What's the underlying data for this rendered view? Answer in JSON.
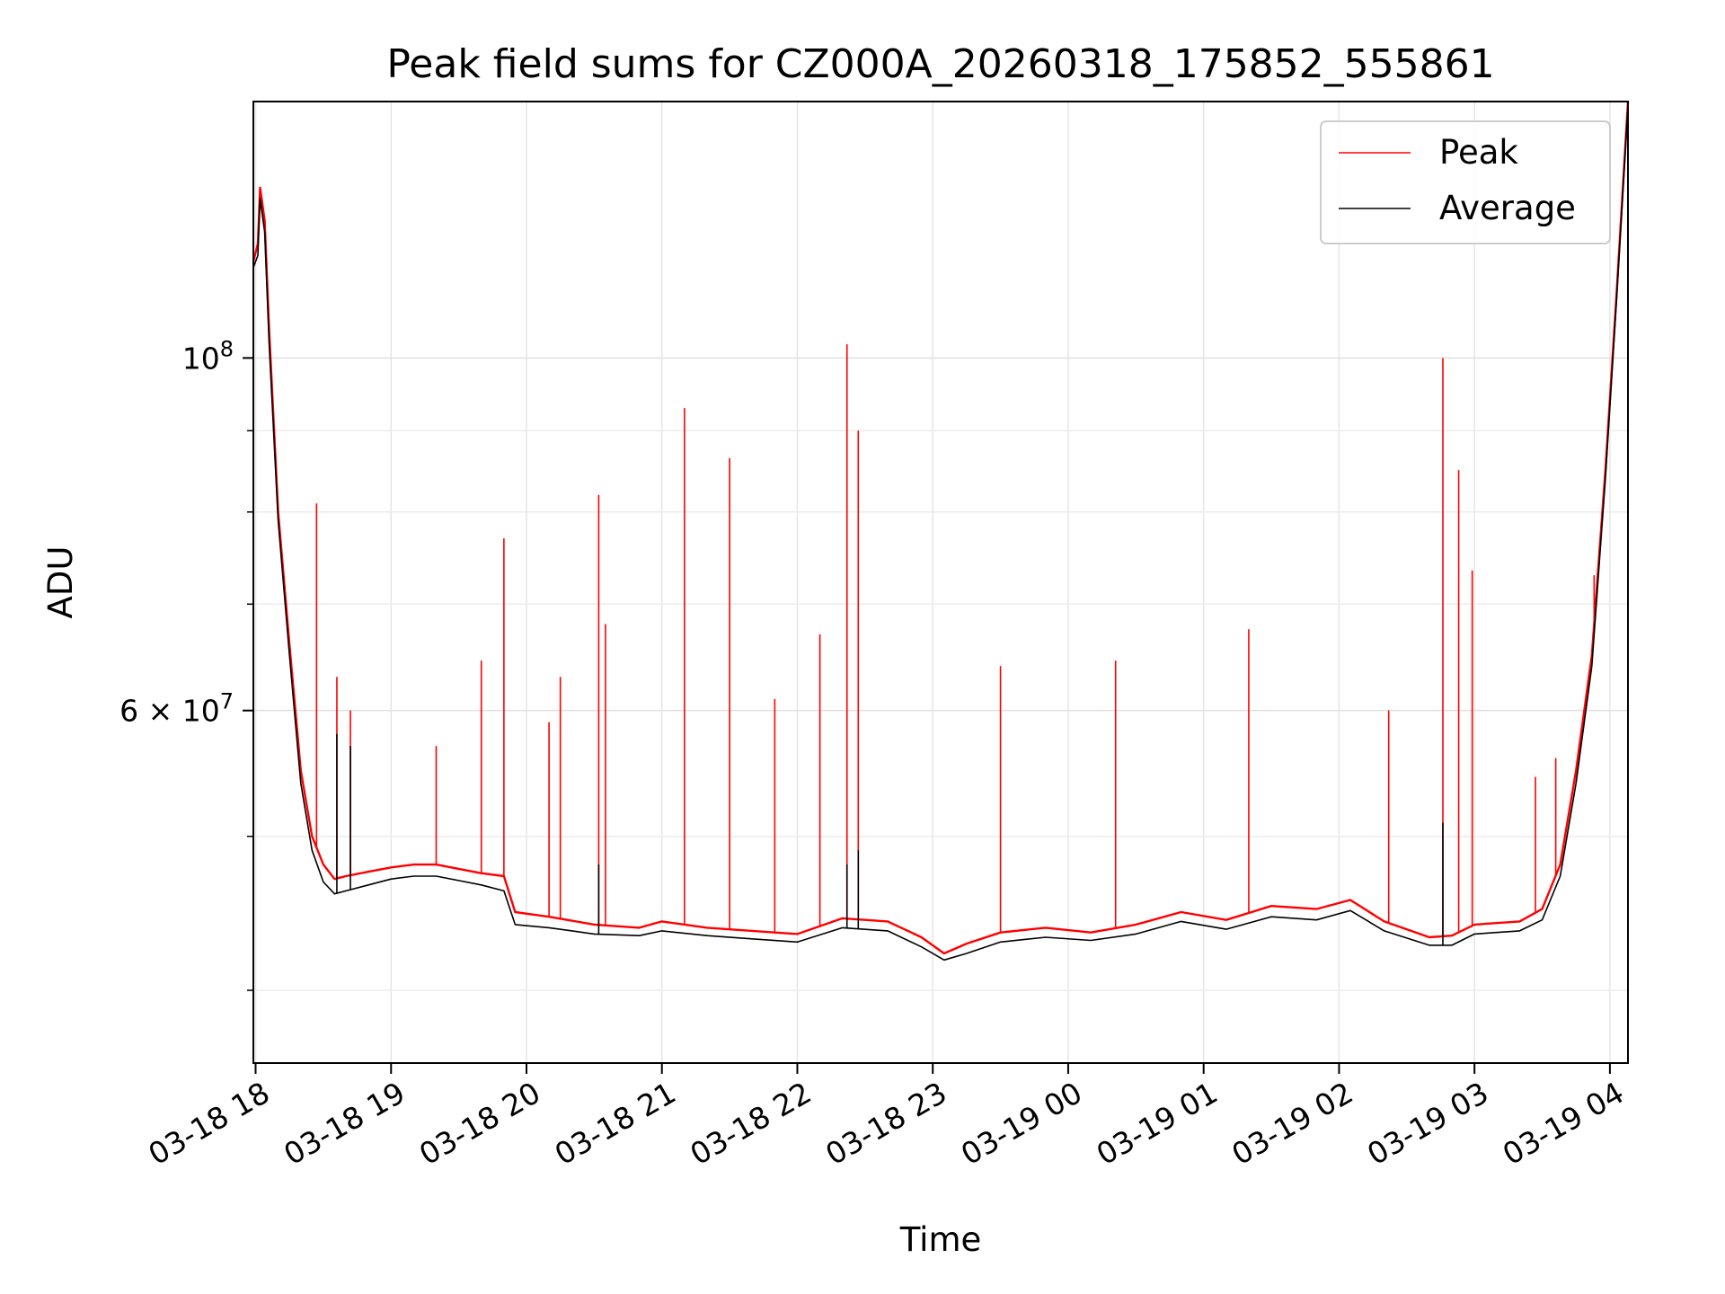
{
  "chart_data": {
    "type": "line",
    "title": "Peak field sums for CZ000A_20260318_175852_555861",
    "xlabel": "Time",
    "ylabel": "ADU",
    "xlim": [
      "2026-03-18 17:59",
      "2026-03-19 04:08"
    ],
    "ylim": [
      36000000,
      145000000
    ],
    "yscale": "log",
    "grid": true,
    "legend_position": "top-right",
    "x_ticks": [
      "03-18 18",
      "03-18 19",
      "03-18 20",
      "03-18 21",
      "03-18 22",
      "03-18 23",
      "03-19 00",
      "03-19 01",
      "03-19 02",
      "03-19 03",
      "03-19 04"
    ],
    "x_tick_times": [
      "2026-03-18 18:00",
      "2026-03-18 19:00",
      "2026-03-18 20:00",
      "2026-03-18 21:00",
      "2026-03-18 22:00",
      "2026-03-18 23:00",
      "2026-03-19 00:00",
      "2026-03-19 01:00",
      "2026-03-19 02:00",
      "2026-03-19 03:00",
      "2026-03-19 04:00"
    ],
    "y_ticks": [
      {
        "value": 100000000,
        "base": "10",
        "exp": "8"
      },
      {
        "value": 60000000,
        "base": "6 × 10",
        "exp": "7"
      }
    ],
    "series": [
      {
        "name": "Peak",
        "color": "#ff0000",
        "line_points": [
          [
            "2026-03-18 17:59",
            115000000.0
          ],
          [
            "2026-03-18 18:01",
            118000000.0
          ],
          [
            "2026-03-18 18:02",
            128000000.0
          ],
          [
            "2026-03-18 18:04",
            122000000.0
          ],
          [
            "2026-03-18 18:06",
            104000000.0
          ],
          [
            "2026-03-18 18:10",
            80000000.0
          ],
          [
            "2026-03-18 18:15",
            66000000.0
          ],
          [
            "2026-03-18 18:20",
            55000000.0
          ],
          [
            "2026-03-18 18:25",
            50000000.0
          ],
          [
            "2026-03-18 18:30",
            48000000.0
          ],
          [
            "2026-03-18 18:35",
            47000000.0
          ],
          [
            "2026-03-18 18:40",
            47200000.0
          ],
          [
            "2026-03-18 18:50",
            47500000.0
          ],
          [
            "2026-03-18 19:00",
            47800000.0
          ],
          [
            "2026-03-18 19:10",
            48000000.0
          ],
          [
            "2026-03-18 19:20",
            48000000.0
          ],
          [
            "2026-03-18 19:30",
            47700000.0
          ],
          [
            "2026-03-18 19:40",
            47400000.0
          ],
          [
            "2026-03-18 19:50",
            47200000.0
          ],
          [
            "2026-03-18 19:55",
            44800000.0
          ],
          [
            "2026-03-18 20:10",
            44500000.0
          ],
          [
            "2026-03-18 20:30",
            44000000.0
          ],
          [
            "2026-03-18 20:50",
            43800000.0
          ],
          [
            "2026-03-18 21:00",
            44200000.0
          ],
          [
            "2026-03-18 21:20",
            43800000.0
          ],
          [
            "2026-03-18 21:40",
            43600000.0
          ],
          [
            "2026-03-18 22:00",
            43400000.0
          ],
          [
            "2026-03-18 22:20",
            44400000.0
          ],
          [
            "2026-03-18 22:40",
            44200000.0
          ],
          [
            "2026-03-18 22:55",
            43200000.0
          ],
          [
            "2026-03-18 23:05",
            42200000.0
          ],
          [
            "2026-03-18 23:15",
            42800000.0
          ],
          [
            "2026-03-18 23:30",
            43500000.0
          ],
          [
            "2026-03-18 23:50",
            43800000.0
          ],
          [
            "2026-03-19 00:10",
            43500000.0
          ],
          [
            "2026-03-19 00:30",
            44000000.0
          ],
          [
            "2026-03-19 00:50",
            44800000.0
          ],
          [
            "2026-03-19 01:10",
            44300000.0
          ],
          [
            "2026-03-19 01:30",
            45200000.0
          ],
          [
            "2026-03-19 01:50",
            45000000.0
          ],
          [
            "2026-03-19 02:05",
            45600000.0
          ],
          [
            "2026-03-19 02:20",
            44200000.0
          ],
          [
            "2026-03-19 02:40",
            43200000.0
          ],
          [
            "2026-03-19 02:50",
            43300000.0
          ],
          [
            "2026-03-19 03:00",
            44000000.0
          ],
          [
            "2026-03-19 03:20",
            44200000.0
          ],
          [
            "2026-03-19 03:30",
            45000000.0
          ],
          [
            "2026-03-19 03:38",
            48000000.0
          ],
          [
            "2026-03-19 03:45",
            55000000.0
          ],
          [
            "2026-03-19 03:52",
            65000000.0
          ],
          [
            "2026-03-19 03:58",
            85000000.0
          ],
          [
            "2026-03-19 04:03",
            110000000.0
          ],
          [
            "2026-03-19 04:08",
            145000000.0
          ]
        ],
        "spikes": [
          [
            "2026-03-18 18:27",
            81000000.0
          ],
          [
            "2026-03-18 18:36",
            63000000.0
          ],
          [
            "2026-03-18 18:42",
            60000000.0
          ],
          [
            "2026-03-18 19:20",
            57000000.0
          ],
          [
            "2026-03-18 19:40",
            64500000.0
          ],
          [
            "2026-03-18 19:50",
            77000000.0
          ],
          [
            "2026-03-18 20:10",
            59000000.0
          ],
          [
            "2026-03-18 20:15",
            63000000.0
          ],
          [
            "2026-03-18 20:32",
            82000000.0
          ],
          [
            "2026-03-18 20:35",
            68000000.0
          ],
          [
            "2026-03-18 21:10",
            93000000.0
          ],
          [
            "2026-03-18 21:30",
            86500000.0
          ],
          [
            "2026-03-18 21:50",
            61000000.0
          ],
          [
            "2026-03-18 22:10",
            67000000.0
          ],
          [
            "2026-03-18 22:22",
            102000000.0
          ],
          [
            "2026-03-18 22:27",
            90000000.0
          ],
          [
            "2026-03-18 23:30",
            64000000.0
          ],
          [
            "2026-03-19 00:21",
            64500000.0
          ],
          [
            "2026-03-19 01:20",
            67500000.0
          ],
          [
            "2026-03-19 02:22",
            60000000.0
          ],
          [
            "2026-03-19 02:46",
            100000000.0
          ],
          [
            "2026-03-19 02:53",
            85000000.0
          ],
          [
            "2026-03-19 02:59",
            73500000.0
          ],
          [
            "2026-03-19 03:27",
            54500000.0
          ],
          [
            "2026-03-19 03:36",
            56000000.0
          ],
          [
            "2026-03-19 03:53",
            73000000.0
          ]
        ]
      },
      {
        "name": "Average",
        "color": "#000000",
        "line_points": [
          [
            "2026-03-18 17:59",
            114000000.0
          ],
          [
            "2026-03-18 18:01",
            116000000.0
          ],
          [
            "2026-03-18 18:02",
            126000000.0
          ],
          [
            "2026-03-18 18:04",
            120000000.0
          ],
          [
            "2026-03-18 18:06",
            102000000.0
          ],
          [
            "2026-03-18 18:10",
            79000000.0
          ],
          [
            "2026-03-18 18:15",
            65000000.0
          ],
          [
            "2026-03-18 18:20",
            54000000.0
          ],
          [
            "2026-03-18 18:25",
            49000000.0
          ],
          [
            "2026-03-18 18:30",
            46800000.0
          ],
          [
            "2026-03-18 18:35",
            46000000.0
          ],
          [
            "2026-03-18 18:40",
            46200000.0
          ],
          [
            "2026-03-18 18:50",
            46600000.0
          ],
          [
            "2026-03-18 19:00",
            47000000.0
          ],
          [
            "2026-03-18 19:10",
            47200000.0
          ],
          [
            "2026-03-18 19:20",
            47200000.0
          ],
          [
            "2026-03-18 19:30",
            46900000.0
          ],
          [
            "2026-03-18 19:40",
            46600000.0
          ],
          [
            "2026-03-18 19:50",
            46200000.0
          ],
          [
            "2026-03-18 19:55",
            44000000.0
          ],
          [
            "2026-03-18 20:10",
            43800000.0
          ],
          [
            "2026-03-18 20:30",
            43400000.0
          ],
          [
            "2026-03-18 20:50",
            43300000.0
          ],
          [
            "2026-03-18 21:00",
            43600000.0
          ],
          [
            "2026-03-18 21:20",
            43300000.0
          ],
          [
            "2026-03-18 21:40",
            43100000.0
          ],
          [
            "2026-03-18 22:00",
            42900000.0
          ],
          [
            "2026-03-18 22:20",
            43800000.0
          ],
          [
            "2026-03-18 22:40",
            43600000.0
          ],
          [
            "2026-03-18 22:55",
            42600000.0
          ],
          [
            "2026-03-18 23:05",
            41800000.0
          ],
          [
            "2026-03-18 23:15",
            42200000.0
          ],
          [
            "2026-03-18 23:30",
            42900000.0
          ],
          [
            "2026-03-18 23:50",
            43200000.0
          ],
          [
            "2026-03-19 00:10",
            43000000.0
          ],
          [
            "2026-03-19 00:30",
            43400000.0
          ],
          [
            "2026-03-19 00:50",
            44200000.0
          ],
          [
            "2026-03-19 01:10",
            43700000.0
          ],
          [
            "2026-03-19 01:30",
            44500000.0
          ],
          [
            "2026-03-19 01:50",
            44300000.0
          ],
          [
            "2026-03-19 02:05",
            44900000.0
          ],
          [
            "2026-03-19 02:20",
            43600000.0
          ],
          [
            "2026-03-19 02:40",
            42700000.0
          ],
          [
            "2026-03-19 02:50",
            42700000.0
          ],
          [
            "2026-03-19 03:00",
            43400000.0
          ],
          [
            "2026-03-19 03:20",
            43600000.0
          ],
          [
            "2026-03-19 03:30",
            44300000.0
          ],
          [
            "2026-03-19 03:38",
            47200000.0
          ],
          [
            "2026-03-19 03:45",
            54000000.0
          ],
          [
            "2026-03-19 03:52",
            64000000.0
          ],
          [
            "2026-03-19 03:58",
            84000000.0
          ],
          [
            "2026-03-19 04:03",
            109000000.0
          ],
          [
            "2026-03-19 04:08",
            144000000.0
          ]
        ],
        "spikes": [
          [
            "2026-03-18 18:36",
            58000000.0
          ],
          [
            "2026-03-18 18:42",
            57000000.0
          ],
          [
            "2026-03-18 20:32",
            48000000.0
          ],
          [
            "2026-03-18 22:22",
            48000000.0
          ],
          [
            "2026-03-18 22:27",
            49000000.0
          ],
          [
            "2026-03-19 02:46",
            51000000.0
          ]
        ]
      }
    ]
  }
}
